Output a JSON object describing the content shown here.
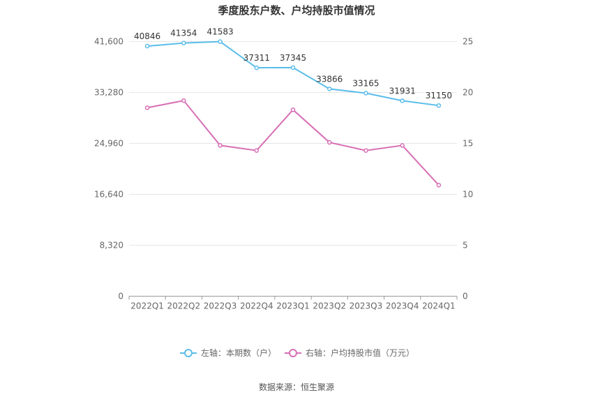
{
  "chart_data": {
    "type": "line",
    "title": "季度股东户数、户均持股市值情况",
    "categories": [
      "2022Q1",
      "2022Q2",
      "2022Q3",
      "2022Q4",
      "2023Q1",
      "2023Q2",
      "2023Q3",
      "2023Q4",
      "2024Q1"
    ],
    "left_axis": {
      "ticks": [
        "0",
        "8,320",
        "16,640",
        "24,960",
        "33,280",
        "41,600"
      ],
      "ylim": [
        0,
        41600
      ]
    },
    "right_axis": {
      "ticks": [
        "0",
        "5",
        "10",
        "15",
        "20",
        "25"
      ],
      "ylim": [
        0,
        25
      ]
    },
    "grid": true,
    "series": [
      {
        "name": "左轴：本期数（户）",
        "axis": "left",
        "color": "#5bbdea",
        "values": [
          40846,
          41354,
          41583,
          37311,
          37345,
          33866,
          33165,
          31931,
          31150
        ],
        "labels": [
          "40846",
          "41354",
          "41583",
          "37311",
          "37345",
          "33866",
          "33165",
          "31931",
          "31150"
        ]
      },
      {
        "name": "右轴：户均持股市值（万元）",
        "axis": "right",
        "color": "#d86fb5",
        "values": [
          18.5,
          19.2,
          14.8,
          14.3,
          18.3,
          15.1,
          14.3,
          14.8,
          10.9
        ]
      }
    ],
    "legend_position": "bottom",
    "source": "数据来源：恒生聚源"
  }
}
